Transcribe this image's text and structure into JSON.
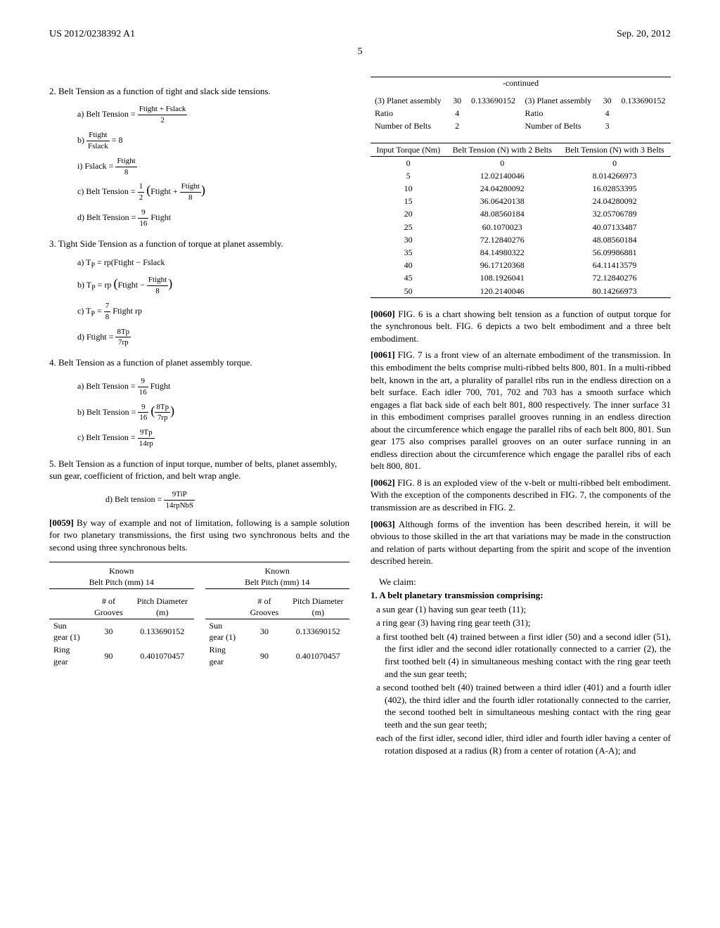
{
  "header": {
    "pub_number": "US 2012/0238392 A1",
    "date": "Sep. 20, 2012",
    "page_number": "5"
  },
  "left": {
    "s2_title": "2. Belt Tension as a function of tight and slack side tensions.",
    "eq2a_label": "a) Belt Tension =",
    "eq2a_num": "Ftight + Fslack",
    "eq2a_den": "2",
    "eq2b_label": "b) ",
    "eq2b_num": "Ftight",
    "eq2b_den": "Fslack",
    "eq2b_rhs": " = 8",
    "eq2i_label": "i) Fslack =",
    "eq2i_num": "Ftight",
    "eq2i_den": "8",
    "eq2c_label": "c) Belt Tension =",
    "eq2c_coef_num": "1",
    "eq2c_coef_den": "2",
    "eq2c_inner_left": "Ftight + ",
    "eq2c_inner_num": "Ftight",
    "eq2c_inner_den": "8",
    "eq2d_label": "d) Belt Tension =",
    "eq2d_num": "9",
    "eq2d_den": "16",
    "eq2d_tail": " Ftight",
    "s3_title": "3. Tight Side Tension as a function of torque at planet assembly.",
    "eq3a": "a) T",
    "eq3a_sub": "P",
    "eq3a_rhs": " = rp(Ftight − Fslack",
    "eq3b": "b) T",
    "eq3b_sub": "P",
    "eq3b_rhs_pre": " = rp",
    "eq3b_inner_left": "Ftight − ",
    "eq3b_inner_num": "Ftight",
    "eq3b_inner_den": "8",
    "eq3c": "c) T",
    "eq3c_sub": "P",
    "eq3c_rhs_pre": " = ",
    "eq3c_num": "7",
    "eq3c_den": "8",
    "eq3c_tail": " Ftight rp",
    "eq3d": "d) Ftight = ",
    "eq3d_num": "8Tp",
    "eq3d_den": "7rp",
    "s4_title": "4. Belt Tension as a function of planet assembly torque.",
    "eq4a_label": "a) Belt Tension =",
    "eq4a_num": "9",
    "eq4a_den": "16",
    "eq4a_tail": " Ftight",
    "eq4b_label": "b) Belt Tension =",
    "eq4b_num": "9",
    "eq4b_den": "16",
    "eq4b_inner_num": "8Tp",
    "eq4b_inner_den": "7rp",
    "eq4c_label": "c) Belt Tension =",
    "eq4c_num": "9Tp",
    "eq4c_den": "14rp",
    "s5_title": "5. Belt Tension as a function of input torque, number of belts, planet assembly, sun gear, coefficient of friction, and belt wrap angle.",
    "eq5d_label": "d) Belt tension =",
    "eq5d_num": "9TiP",
    "eq5d_den": "14rpNbS",
    "p59_num": "[0059]",
    "p59": " By way of example and not of limitation, following is a sample solution for two planetary transmissions, the first using two synchronous belts and the second using three synchronous belts.",
    "known_title_a": "Known",
    "known_line_a": "Belt Pitch (mm) 14",
    "known_title_b": "Known",
    "known_line_b": "Belt Pitch (mm) 14",
    "col_grooves": "# of Grooves",
    "col_pitch": "Pitch Diameter (m)",
    "row_sun_l": "Sun gear (1)",
    "row_sun_g": "30",
    "row_sun_p": "0.133690152",
    "row_sun_r": "Sun gear (1)",
    "row_sun_g2": "30",
    "row_sun_p2": "0.133690152",
    "row_ring_l": "Ring gear",
    "row_ring_g": "90",
    "row_ring_p": "0.401070457",
    "row_ring_r": "Ring gear",
    "row_ring_g2": "90",
    "row_ring_p2": "0.401070457"
  },
  "right": {
    "continued": "-continued",
    "c1_items": [
      [
        "(3) Planet assembly",
        "30",
        "0.133690152",
        "(3) Planet assembly",
        "30",
        "0.133690152"
      ],
      [
        "Ratio",
        "4",
        "",
        "Ratio",
        "4",
        ""
      ],
      [
        "Number of Belts",
        "2",
        "",
        "Number of Belts",
        "3",
        ""
      ]
    ],
    "hdr_input": "Input Torque (Nm)",
    "hdr_b2": "Belt Tension (N) with 2 Belts",
    "hdr_b3": "Belt Tension (N) with 3 Belts",
    "data_rows": [
      [
        "0",
        "0",
        "0"
      ],
      [
        "5",
        "12.02140046",
        "8.014266973"
      ],
      [
        "10",
        "24.04280092",
        "16.02853395"
      ],
      [
        "15",
        "36.06420138",
        "24.04280092"
      ],
      [
        "20",
        "48.08560184",
        "32.05706789"
      ],
      [
        "25",
        "60.1070023",
        "40.07133487"
      ],
      [
        "30",
        "72.12840276",
        "48.08560184"
      ],
      [
        "35",
        "84.14980322",
        "56.09986881"
      ],
      [
        "40",
        "96.17120368",
        "64.11413579"
      ],
      [
        "45",
        "108.1926041",
        "72.12840276"
      ],
      [
        "50",
        "120.2140046",
        "80.14266973"
      ]
    ],
    "p60_num": "[0060]",
    "p60": " FIG. 6 is a chart showing belt tension as a function of output torque for the synchronous belt. FIG. 6 depicts a two belt embodiment and a three belt embodiment.",
    "p61_num": "[0061]",
    "p61": " FIG. 7 is a front view of an alternate embodiment of the transmission. In this embodiment the belts comprise multi-ribbed belts 800, 801. In a multi-ribbed belt, known in the art, a plurality of parallel ribs run in the endless direction on a belt surface. Each idler 700, 701, 702 and 703 has a smooth surface which engages a flat back side of each belt 801, 800 respectively. The inner surface 31 in this embodiment comprises parallel grooves running in an endless direction about the circumference which engage the parallel ribs of each belt 800, 801. Sun gear 175 also comprises parallel grooves on an outer surface running in an endless direction about the circumference which engage the parallel ribs of each belt 800, 801.",
    "p62_num": "[0062]",
    "p62": " FIG. 8 is an exploded view of the v-belt or multi-ribbed belt embodiment. With the exception of the components described in FIG. 7, the components of the transmission are as described in FIG. 2.",
    "p63_num": "[0063]",
    "p63": " Although forms of the invention has been described herein, it will be obvious to those skilled in the art that variations may be made in the construction and relation of parts without departing from the spirit and scope of the invention described herein.",
    "claims_intro": "We claim:",
    "claim1": "1. A belt planetary transmission comprising:",
    "claim1a": "a sun gear (1) having sun gear teeth (11);",
    "claim1b": "a ring gear (3) having ring gear teeth (31);",
    "claim1c": "a first toothed belt (4) trained between a first idler (50) and a second idler (51), the first idler and the second idler rotationally connected to a carrier (2), the first toothed belt (4) in simultaneous meshing contact with the ring gear teeth and the sun gear teeth;",
    "claim1d": "a second toothed belt (40) trained between a third idler (401) and a fourth idler (402), the third idler and the fourth idler rotationally connected to the carrier, the second toothed belt in simultaneous meshing contact with the ring gear teeth and the sun gear teeth;",
    "claim1e": "each of the first idler, second idler, third idler and fourth idler having a center of rotation disposed at a radius (R) from a center of rotation (A-A); and"
  }
}
